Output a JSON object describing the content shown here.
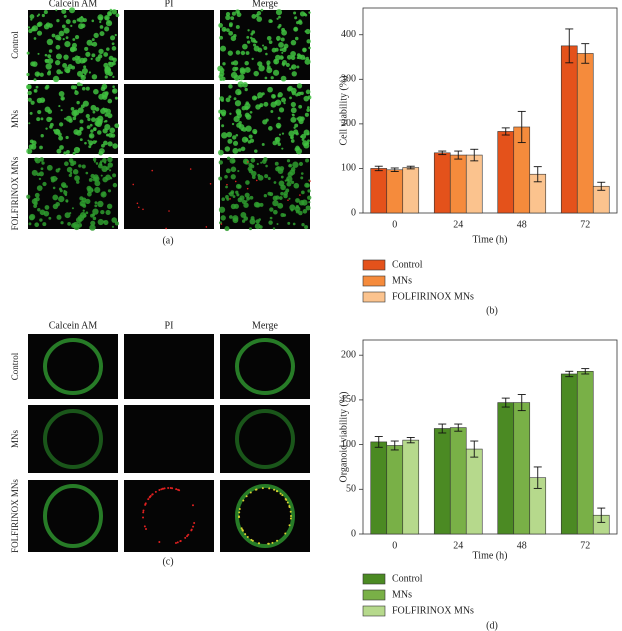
{
  "panels": [
    {
      "label": "(a)",
      "columns": [
        "Calcein AM",
        "PI",
        "Merge"
      ],
      "rows": [
        "Control",
        "MNs",
        "FOLFIRINOX MNs"
      ]
    },
    {
      "label": "(c)",
      "columns": [
        "Calcein AM",
        "PI",
        "Merge"
      ],
      "rows": [
        "Control",
        "MNs",
        "FOLFIRINOX MNs"
      ]
    }
  ],
  "chart_data": [
    {
      "type": "bar",
      "label": "(b)",
      "x_label": "Time (h)",
      "y_label": "Cell viability (%)",
      "categories": [
        "0",
        "24",
        "48",
        "72"
      ],
      "ylim": [
        0,
        460
      ],
      "yticks": [
        0,
        100,
        200,
        300,
        400
      ],
      "series": [
        {
          "name": "Control",
          "color": "#e4521b",
          "values": [
            100,
            135,
            183,
            375
          ],
          "errors": [
            5,
            4,
            8,
            38
          ]
        },
        {
          "name": "MNs",
          "color": "#f58b3c",
          "values": [
            97,
            130,
            193,
            358
          ],
          "errors": [
            4,
            9,
            35,
            22
          ]
        },
        {
          "name": "FOLFIRINOX MNs",
          "color": "#fbc38e",
          "values": [
            102,
            130,
            87,
            60
          ],
          "errors": [
            3,
            13,
            17,
            9
          ]
        }
      ]
    },
    {
      "type": "bar",
      "label": "(d)",
      "x_label": "Time (h)",
      "y_label": "Organoid viability (%)",
      "categories": [
        "0",
        "24",
        "48",
        "72"
      ],
      "ylim": [
        0,
        217
      ],
      "yticks": [
        0,
        50,
        100,
        150,
        200
      ],
      "series": [
        {
          "name": "Control",
          "color": "#4b8a23",
          "values": [
            103,
            118,
            147,
            179
          ],
          "errors": [
            6,
            5,
            5,
            3
          ]
        },
        {
          "name": "MNs",
          "color": "#79b047",
          "values": [
            99,
            119,
            147,
            182
          ],
          "errors": [
            5,
            4,
            9,
            3
          ]
        },
        {
          "name": "FOLFIRINOX MNs",
          "color": "#b6d98c",
          "values": [
            105,
            95,
            63,
            21
          ],
          "errors": [
            3,
            9,
            12,
            8
          ]
        }
      ]
    }
  ]
}
